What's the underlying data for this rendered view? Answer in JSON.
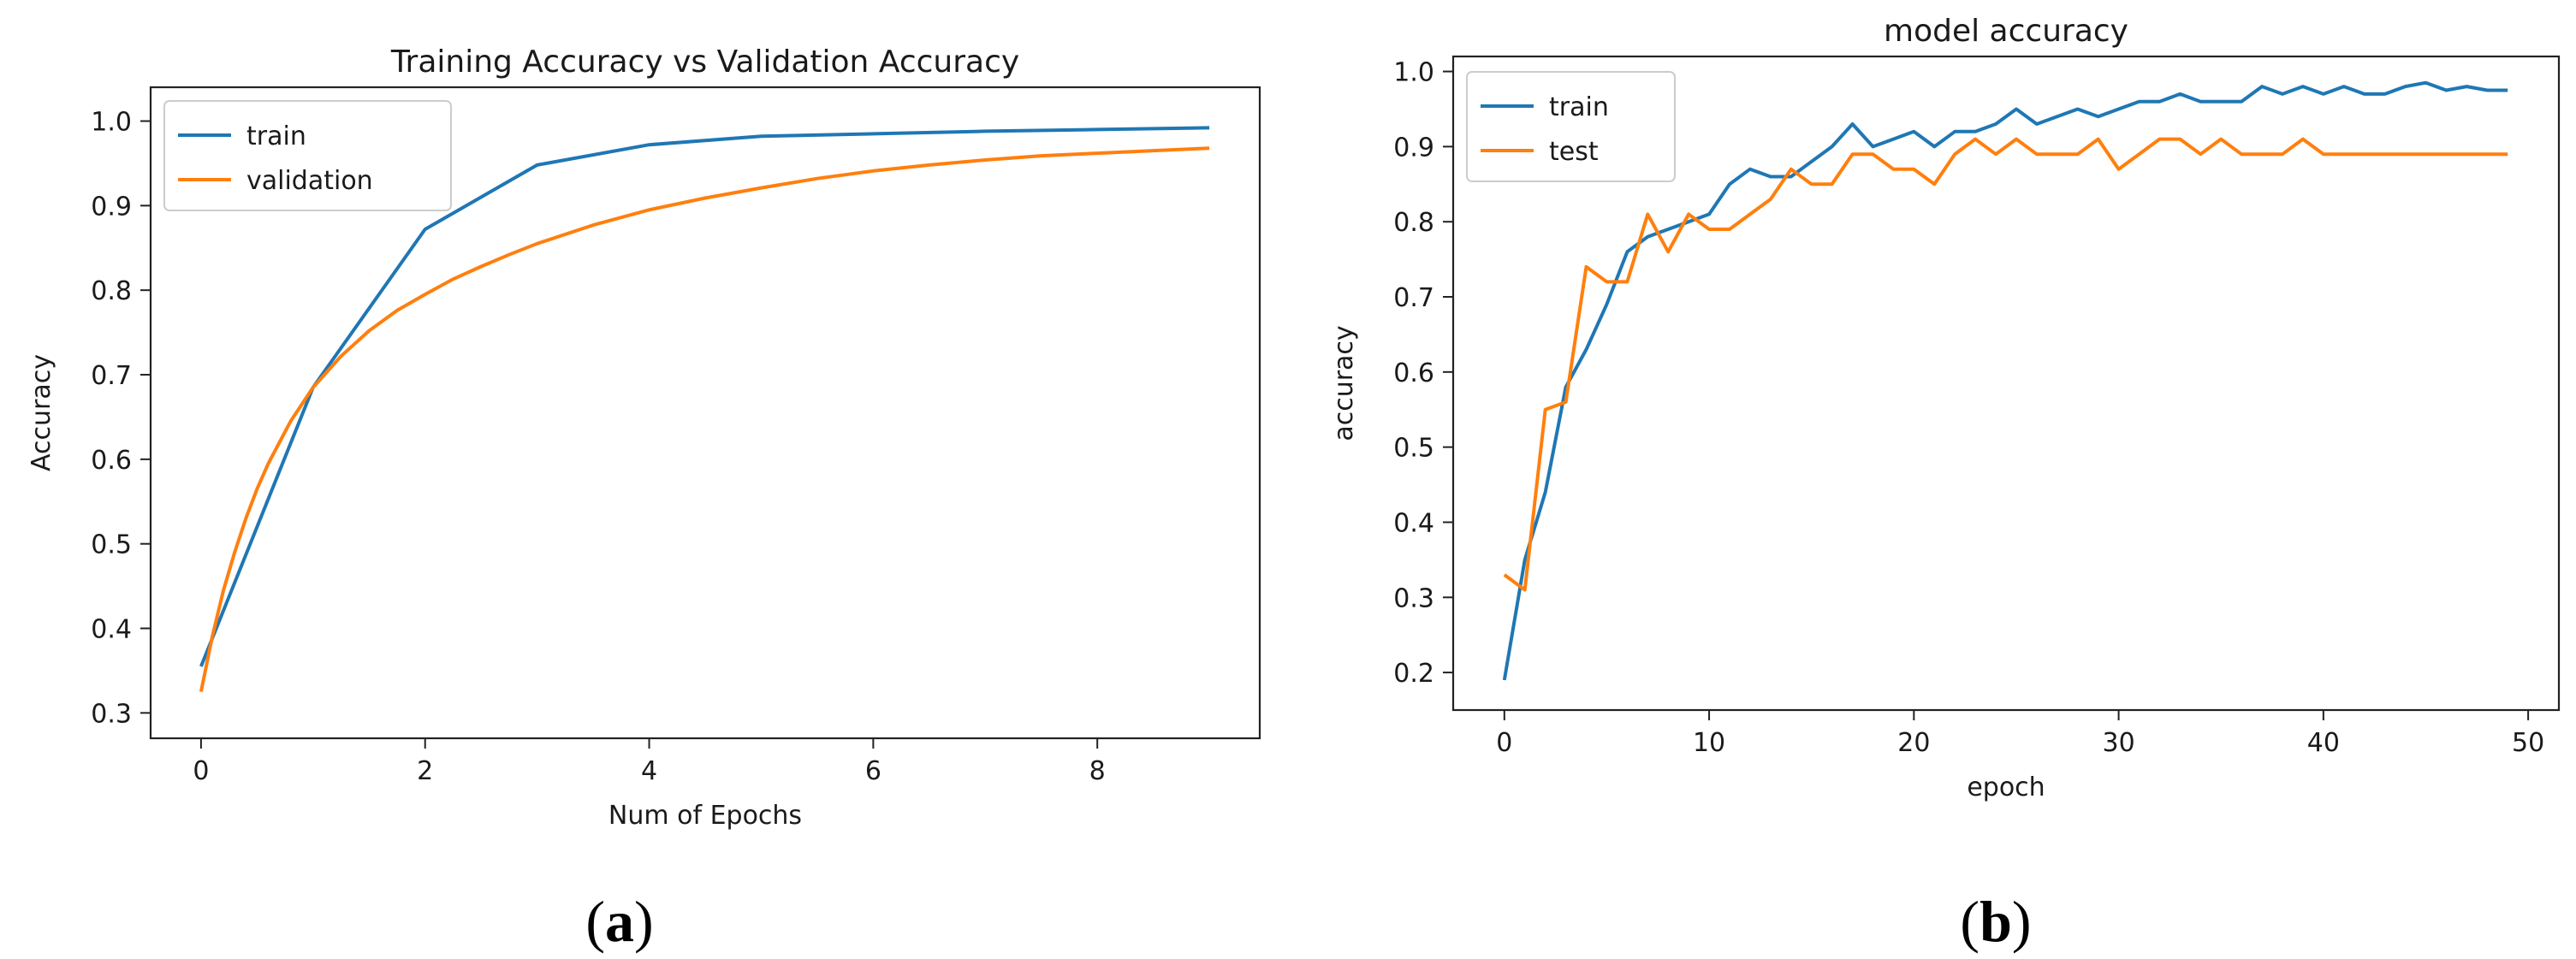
{
  "chart_data": [
    {
      "type": "line",
      "panel_label": "a",
      "title": "Training Accuracy vs Validation Accuracy",
      "xlabel": "Num of Epochs",
      "ylabel": "Accuracy",
      "xlim": [
        -0.45,
        9.45
      ],
      "ylim": [
        0.27,
        1.04
      ],
      "xticks": [
        0,
        2,
        4,
        6,
        8
      ],
      "yticks": [
        0.3,
        0.4,
        0.5,
        0.6,
        0.7,
        0.8,
        0.9,
        1.0
      ],
      "ytick_labels": [
        "0.3",
        "0.4",
        "0.5",
        "0.6",
        "0.7",
        "0.8",
        "0.9",
        "1.0"
      ],
      "grid": false,
      "legend_position": "top-left",
      "series": [
        {
          "name": "train",
          "color": "#1f77b4",
          "x": [
            0,
            1,
            2,
            3,
            4,
            5,
            6,
            7,
            8,
            9
          ],
          "values": [
            0.355,
            0.685,
            0.872,
            0.948,
            0.972,
            0.982,
            0.985,
            0.988,
            0.99,
            0.992
          ]
        },
        {
          "name": "validation",
          "color": "#ff7f0e",
          "x": [
            0,
            0.1,
            0.2,
            0.3,
            0.4,
            0.5,
            0.6,
            0.8,
            1.0,
            1.25,
            1.5,
            1.75,
            2.0,
            2.25,
            2.5,
            2.75,
            3.0,
            3.5,
            4.0,
            4.5,
            5.0,
            5.5,
            6.0,
            6.5,
            7.0,
            7.5,
            8.0,
            8.5,
            9.0
          ],
          "values": [
            0.325,
            0.39,
            0.445,
            0.49,
            0.53,
            0.565,
            0.595,
            0.645,
            0.685,
            0.722,
            0.752,
            0.776,
            0.795,
            0.813,
            0.828,
            0.842,
            0.855,
            0.877,
            0.895,
            0.909,
            0.921,
            0.932,
            0.941,
            0.948,
            0.954,
            0.959,
            0.962,
            0.965,
            0.968
          ]
        }
      ]
    },
    {
      "type": "line",
      "panel_label": "b",
      "title": "model accuracy",
      "xlabel": "epoch",
      "ylabel": "accuracy",
      "xlim": [
        -2.5,
        51.5
      ],
      "ylim": [
        0.15,
        1.02
      ],
      "xticks": [
        0,
        10,
        20,
        30,
        40,
        50
      ],
      "yticks": [
        0.2,
        0.3,
        0.4,
        0.5,
        0.6,
        0.7,
        0.8,
        0.9,
        1.0
      ],
      "ytick_labels": [
        "0.2",
        "0.3",
        "0.4",
        "0.5",
        "0.6",
        "0.7",
        "0.8",
        "0.9",
        "1.0"
      ],
      "grid": false,
      "legend_position": "top-left",
      "series": [
        {
          "name": "train",
          "color": "#1f77b4",
          "x": [
            0,
            1,
            2,
            3,
            4,
            5,
            6,
            7,
            8,
            9,
            10,
            11,
            12,
            13,
            14,
            15,
            16,
            17,
            18,
            19,
            20,
            21,
            22,
            23,
            24,
            25,
            26,
            27,
            28,
            29,
            30,
            31,
            32,
            33,
            34,
            35,
            36,
            37,
            38,
            39,
            40,
            41,
            42,
            43,
            44,
            45,
            46,
            47,
            48,
            49
          ],
          "values": [
            0.19,
            0.35,
            0.44,
            0.58,
            0.63,
            0.69,
            0.76,
            0.78,
            0.79,
            0.8,
            0.81,
            0.85,
            0.87,
            0.86,
            0.86,
            0.88,
            0.9,
            0.93,
            0.9,
            0.91,
            0.92,
            0.9,
            0.92,
            0.92,
            0.93,
            0.95,
            0.93,
            0.94,
            0.95,
            0.94,
            0.95,
            0.96,
            0.96,
            0.97,
            0.96,
            0.96,
            0.96,
            0.98,
            0.97,
            0.98,
            0.97,
            0.98,
            0.97,
            0.97,
            0.98,
            0.985,
            0.975,
            0.98,
            0.975,
            0.975
          ]
        },
        {
          "name": "test",
          "color": "#ff7f0e",
          "x": [
            0,
            1,
            2,
            3,
            4,
            5,
            6,
            7,
            8,
            9,
            10,
            11,
            12,
            13,
            14,
            15,
            16,
            17,
            18,
            19,
            20,
            21,
            22,
            23,
            24,
            25,
            26,
            27,
            28,
            29,
            30,
            31,
            32,
            33,
            34,
            35,
            36,
            37,
            38,
            39,
            40,
            41,
            42,
            43,
            44,
            45,
            46,
            47,
            48,
            49
          ],
          "values": [
            0.33,
            0.31,
            0.55,
            0.56,
            0.74,
            0.72,
            0.72,
            0.81,
            0.76,
            0.81,
            0.79,
            0.79,
            0.81,
            0.83,
            0.87,
            0.85,
            0.85,
            0.89,
            0.89,
            0.87,
            0.87,
            0.85,
            0.89,
            0.91,
            0.89,
            0.91,
            0.89,
            0.89,
            0.89,
            0.91,
            0.87,
            0.89,
            0.91,
            0.91,
            0.89,
            0.91,
            0.89,
            0.89,
            0.89,
            0.91,
            0.89,
            0.89,
            0.89,
            0.89,
            0.89,
            0.89,
            0.89,
            0.89,
            0.89,
            0.89
          ]
        }
      ]
    }
  ]
}
